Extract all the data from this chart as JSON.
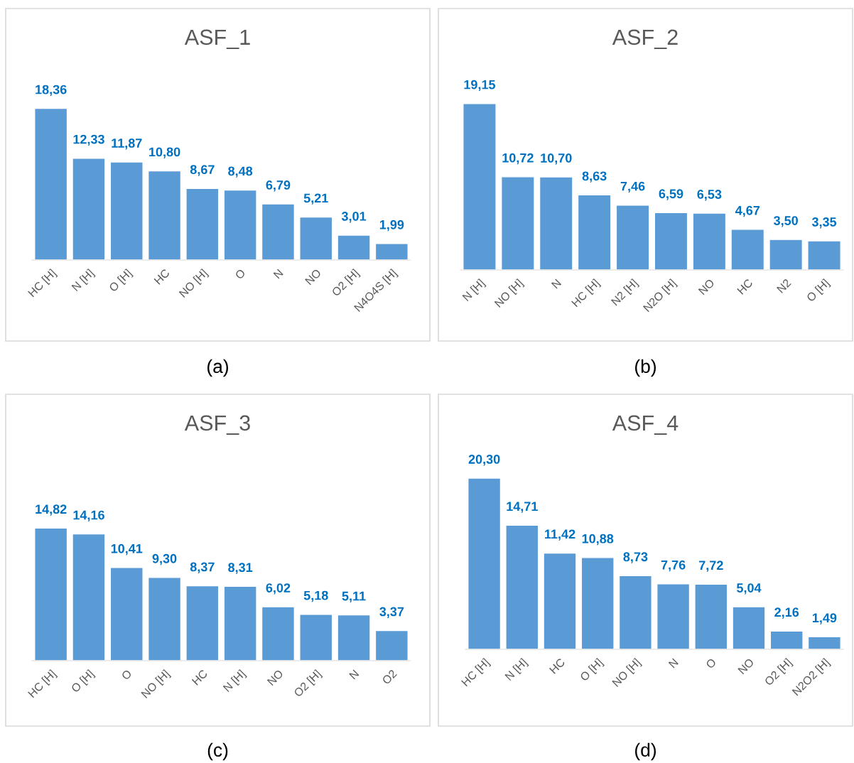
{
  "chart_data": [
    {
      "type": "bar",
      "title": "ASF_1",
      "categories": [
        "HC [H]",
        "N [H]",
        "O [H]",
        "HC",
        "NO [H]",
        "O",
        "N",
        "NO",
        "O2 [H]",
        "N4O4S [H]"
      ],
      "values": [
        18.36,
        12.33,
        11.87,
        10.8,
        8.67,
        8.48,
        6.79,
        5.21,
        3.01,
        1.99
      ],
      "value_labels": [
        "18,36",
        "12,33",
        "11,87",
        "10,80",
        "8,67",
        "8,48",
        "6,79",
        "5,21",
        "3,01",
        "1,99"
      ],
      "color": "#5b9bd5",
      "tick_labels": "x",
      "annotations": [
        "(a)"
      ]
    },
    {
      "type": "bar",
      "title": "ASF_2",
      "categories": [
        "N [H]",
        "NO [H]",
        "N",
        "HC [H]",
        "N2 [H]",
        "N2O [H]",
        "NO",
        "HC",
        "N2",
        "O [H]"
      ],
      "values": [
        19.15,
        10.72,
        10.7,
        8.63,
        7.46,
        6.59,
        6.53,
        4.67,
        3.5,
        3.35
      ],
      "value_labels": [
        "19,15",
        "10,72",
        "10,70",
        "8,63",
        "7,46",
        "6,59",
        "6,53",
        "4,67",
        "3,50",
        "3,35"
      ],
      "color": "#5b9bd5",
      "tick_labels": "x",
      "annotations": [
        "(b)"
      ]
    },
    {
      "type": "bar",
      "title": "ASF_3",
      "categories": [
        "HC [H]",
        "O [H]",
        "O",
        "NO [H]",
        "HC",
        "N [H]",
        "NO",
        "O2 [H]",
        "N",
        "O2"
      ],
      "values": [
        14.82,
        14.16,
        10.41,
        9.3,
        8.37,
        8.31,
        6.02,
        5.18,
        5.11,
        3.37
      ],
      "value_labels": [
        "14,82",
        "14,16",
        "10,41",
        "9,30",
        "8,37",
        "8,31",
        "6,02",
        "5,18",
        "5,11",
        "3,37"
      ],
      "color": "#5b9bd5",
      "tick_labels": "x",
      "annotations": [
        "(c)"
      ]
    },
    {
      "type": "bar",
      "title": "ASF_4",
      "categories": [
        "HC [H]",
        "N [H]",
        "HC",
        "O [H]",
        "NO [H]",
        "N",
        "O",
        "NO",
        "O2 [H]",
        "N2O2 [H]"
      ],
      "values": [
        20.3,
        14.71,
        11.42,
        10.88,
        8.73,
        7.76,
        7.72,
        5.04,
        2.16,
        1.49
      ],
      "value_labels": [
        "20,30",
        "14,71",
        "11,42",
        "10,88",
        "8,73",
        "7,76",
        "7,72",
        "5,04",
        "2,16",
        "1,49"
      ],
      "color": "#5b9bd5",
      "tick_labels": "x",
      "annotations": [
        "(d)"
      ]
    }
  ]
}
